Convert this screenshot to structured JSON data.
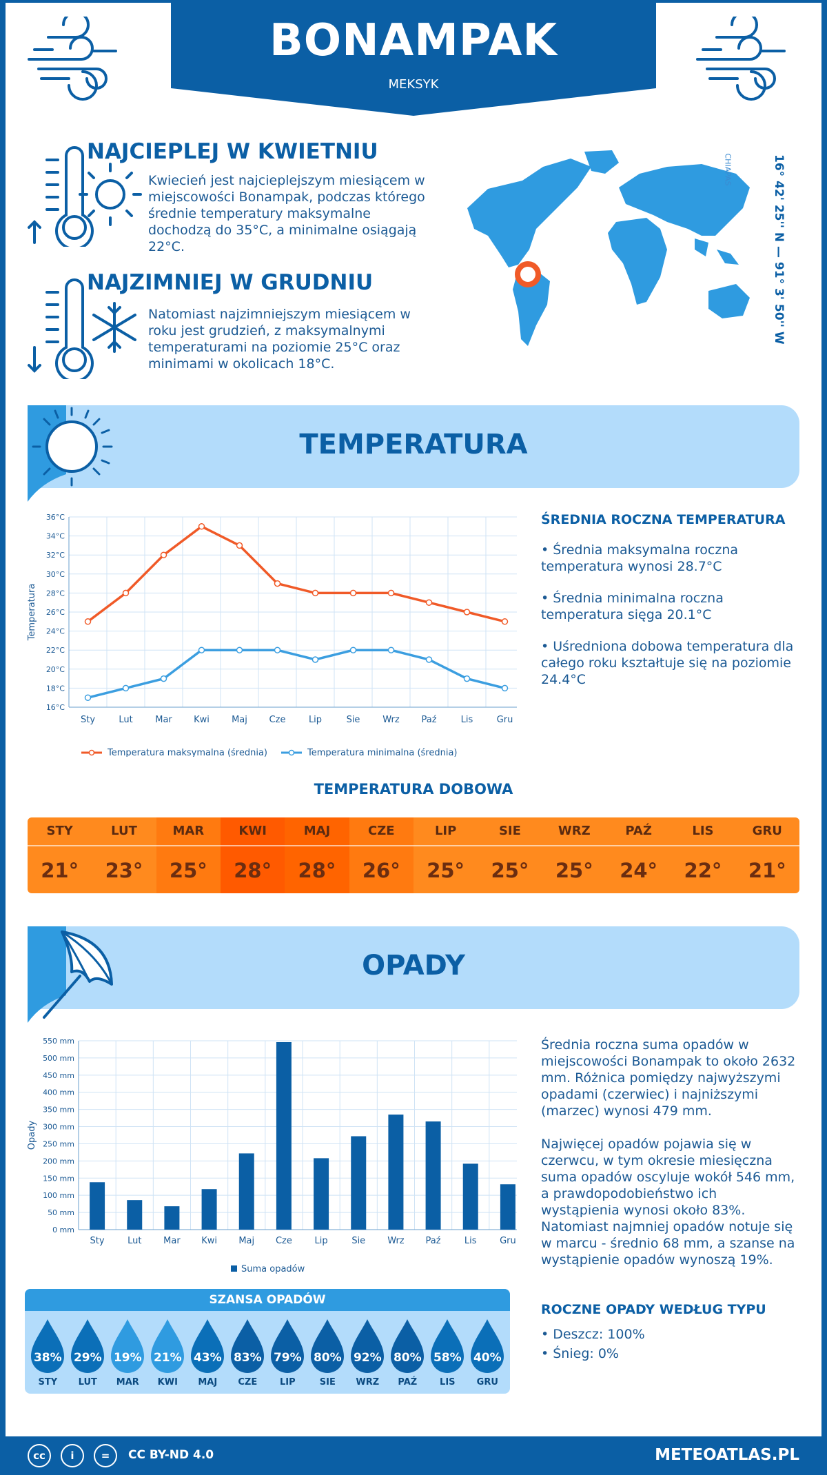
{
  "header": {
    "title": "BONAMPAK",
    "subtitle": "MEKSYK"
  },
  "warmest": {
    "title": "NAJCIEPLEJ W KWIETNIU",
    "text": "Kwiecień jest najcieplejszym miesiącem w miejscowości Bonampak, podczas którego średnie temperatury maksymalne dochodzą do 35°C, a minimalne osiągają 22°C."
  },
  "coldest": {
    "title": "NAJZIMNIEJ W GRUDNIU",
    "text": "Natomiast najzimniejszym miesiącem w roku jest grudzień, z maksymalnymi temperaturami na poziomie 25°C oraz minimami w okolicach 18°C."
  },
  "location": {
    "coords": "16° 42' 25'' N — 91° 3' 50'' W",
    "region": "CHIAPAS"
  },
  "temp_section": {
    "title": "TEMPERATURA"
  },
  "temp_stats": {
    "title": "ŚREDNIA ROCZNA TEMPERATURA",
    "max": "• Średnia maksymalna roczna temperatura wynosi 28.7°C",
    "min": "• Średnia minimalna roczna temperatura sięga 20.1°C",
    "avg": "• Uśredniona dobowa temperatura dla całego roku kształtuje się na poziomie 24.4°C"
  },
  "daily": {
    "title": "TEMPERATURA DOBOWA",
    "months": [
      "STY",
      "LUT",
      "MAR",
      "KWI",
      "MAJ",
      "CZE",
      "LIP",
      "SIE",
      "WRZ",
      "PAŹ",
      "LIS",
      "GRU"
    ],
    "values": [
      "21°",
      "23°",
      "25°",
      "28°",
      "28°",
      "26°",
      "25°",
      "25°",
      "25°",
      "24°",
      "22°",
      "21°"
    ],
    "colors": [
      "#ff8a1e",
      "#ff8a1e",
      "#ff7a10",
      "#ff5a00",
      "#ff6400",
      "#ff7a10",
      "#ff8a1e",
      "#ff8a1e",
      "#ff8a1e",
      "#ff8a1e",
      "#ff8a1e",
      "#ff8a1e"
    ]
  },
  "precip_section": {
    "title": "OPADY"
  },
  "precip_text": {
    "p1": "Średnia roczna suma opadów w miejscowości Bonampak to około 2632 mm. Różnica pomiędzy najwyższymi opadami (czerwiec) i najniższymi (marzec) wynosi 479 mm.",
    "p2": "Najwięcej opadów pojawia się w czerwcu, w tym okresie miesięczna suma opadów oscyluje wokół 546 mm, a prawdopodobieństwo ich wystąpienia wynosi około 83%. Natomiast najmniej opadów notuje się w marcu - średnio 68 mm, a szanse na wystąpienie opadów wynoszą 19%."
  },
  "precip_type": {
    "title": "ROCZNE OPADY WEDŁUG TYPU",
    "rain": "• Deszcz: 100%",
    "snow": "• Śnieg: 0%"
  },
  "chance": {
    "title": "SZANSA OPADÓW",
    "months": [
      "STY",
      "LUT",
      "MAR",
      "KWI",
      "MAJ",
      "CZE",
      "LIP",
      "SIE",
      "WRZ",
      "PAŹ",
      "LIS",
      "GRU"
    ],
    "values": [
      "38%",
      "29%",
      "19%",
      "21%",
      "43%",
      "83%",
      "79%",
      "80%",
      "92%",
      "80%",
      "58%",
      "40%"
    ],
    "levels": [
      38,
      29,
      19,
      21,
      43,
      83,
      79,
      80,
      92,
      80,
      58,
      40
    ]
  },
  "footer": {
    "license": "CC BY-ND 4.0",
    "site": "METEOATLAS.PL",
    "cc": "cc",
    "by": "i",
    "nd": "="
  },
  "colors": {
    "accent": "#0b5fa5",
    "light": "#b3dcfb",
    "max_line": "#f05a28",
    "min_line": "#3b9ee0",
    "bar": "#0b5fa5"
  },
  "chart_data": [
    {
      "type": "line",
      "categories": [
        "Sty",
        "Lut",
        "Mar",
        "Kwi",
        "Maj",
        "Cze",
        "Lip",
        "Sie",
        "Wrz",
        "Paź",
        "Lis",
        "Gru"
      ],
      "series": [
        {
          "name": "Temperatura maksymalna (średnia)",
          "values": [
            25,
            28,
            32,
            35,
            33,
            29,
            28,
            28,
            28,
            27,
            26,
            25
          ]
        },
        {
          "name": "Temperatura minimalna (średnia)",
          "values": [
            17,
            18,
            19,
            22,
            22,
            22,
            21,
            22,
            22,
            21,
            19,
            18
          ]
        }
      ],
      "ylabel": "Temperatura",
      "ylim": [
        16,
        36
      ],
      "yticks": [
        "16°C",
        "18°C",
        "20°C",
        "22°C",
        "24°C",
        "26°C",
        "28°C",
        "30°C",
        "32°C",
        "34°C",
        "36°C"
      ],
      "legend": "bottom",
      "grid": true
    },
    {
      "type": "bar",
      "categories": [
        "Sty",
        "Lut",
        "Mar",
        "Kwi",
        "Maj",
        "Cze",
        "Lip",
        "Sie",
        "Wrz",
        "Paź",
        "Lis",
        "Gru"
      ],
      "series": [
        {
          "name": "Suma opadów",
          "values": [
            138,
            86,
            68,
            118,
            222,
            546,
            208,
            272,
            335,
            315,
            192,
            132
          ]
        }
      ],
      "ylabel": "Opady",
      "ylim": [
        0,
        550
      ],
      "yticks": [
        "0 mm",
        "50 mm",
        "100 mm",
        "150 mm",
        "200 mm",
        "250 mm",
        "300 mm",
        "350 mm",
        "400 mm",
        "450 mm",
        "500 mm",
        "550 mm"
      ],
      "legend": "bottom",
      "grid": true
    }
  ]
}
